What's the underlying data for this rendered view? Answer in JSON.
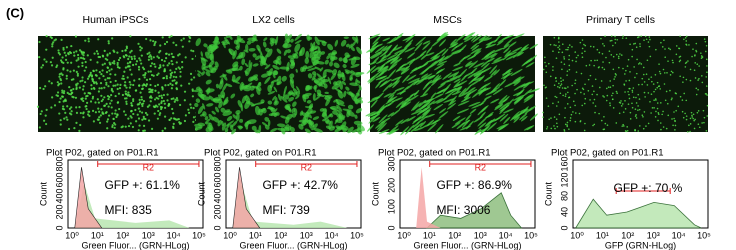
{
  "panel_label": "(C)",
  "columns": [
    {
      "title": "Human iPSCs",
      "plot": {
        "title": "Plot P02, gated on P01.R1",
        "gate": "R2",
        "ylabel": "Count",
        "yticks": [
          0,
          200,
          400,
          600,
          800
        ],
        "xticks": [
          "10⁰",
          "10¹",
          "10²",
          "10³",
          "10⁴",
          "10⁵"
        ],
        "xlabel": "Green Fluor... (GRN-HLog)",
        "gfp": "GFP +: 61.1%",
        "mfi": "MFI: 835"
      }
    },
    {
      "title": "LX2 cells",
      "plot": {
        "title": "Plot P02, gated on P01.R1",
        "gate": "R2",
        "ylabel": "Count",
        "yticks": [
          0,
          200,
          400,
          600,
          800
        ],
        "xticks": [
          "10⁰",
          "10¹",
          "10²",
          "10³",
          "10⁴",
          "10⁵"
        ],
        "xlabel": "Green Fluor... (GRN-HLog)",
        "gfp": "GFP +: 42.7%",
        "mfi": "MFI: 739"
      }
    },
    {
      "title": "MSCs",
      "plot": {
        "title": "Plot P02, gated on P01.R1",
        "gate": "R2",
        "ylabel": "Count",
        "yticks": [
          0,
          100,
          200,
          300
        ],
        "xticks": [
          "10⁰",
          "10¹",
          "10²",
          "10³",
          "10⁴",
          "10⁵"
        ],
        "xlabel": "Green Fluor... (GRN-HLog)",
        "gfp": "GFP +: 86.9%",
        "mfi": "MFI: 3006"
      }
    },
    {
      "title": "Primary T cells",
      "plot": {
        "title": "Plot P02, gated on P01.R1",
        "gate": "R2",
        "ylabel": "Count",
        "yticks": [
          0,
          40,
          80,
          120,
          160
        ],
        "xticks": [
          "10⁰",
          "10¹",
          "10²",
          "10³",
          "10⁴",
          "10⁵"
        ],
        "xlabel": "GFP (GRN-HLog)",
        "gfp": "GFP +: 70 %"
      }
    }
  ]
}
